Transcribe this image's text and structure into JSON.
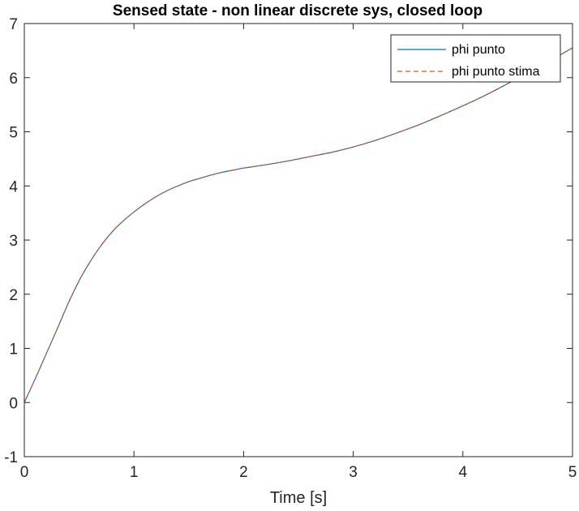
{
  "chart_data": {
    "type": "line",
    "title": "Sensed state - non linear discrete sys, closed loop",
    "xlabel": "Time [s]",
    "ylabel": "",
    "xlim": [
      0,
      5
    ],
    "ylim": [
      -1,
      7
    ],
    "xticks": [
      "0",
      "1",
      "2",
      "3",
      "4",
      "5"
    ],
    "yticks": [
      "-1",
      "0",
      "1",
      "2",
      "3",
      "4",
      "5",
      "6",
      "7"
    ],
    "grid": false,
    "legend_position": "top-right",
    "series": [
      {
        "name": "phi punto",
        "color": "#0072BD",
        "style": "solid",
        "x": [
          0,
          0.1,
          0.2,
          0.3,
          0.4,
          0.5,
          0.6,
          0.7,
          0.8,
          0.9,
          1.0,
          1.1,
          1.2,
          1.3,
          1.4,
          1.5,
          1.6,
          1.7,
          1.8,
          1.9,
          2.0,
          2.2,
          2.4,
          2.6,
          2.8,
          3.0,
          3.2,
          3.4,
          3.6,
          3.8,
          4.0,
          4.2,
          4.4,
          4.6,
          4.8,
          5.0
        ],
        "y": [
          0.0,
          0.44,
          0.9,
          1.36,
          1.83,
          2.25,
          2.6,
          2.9,
          3.15,
          3.35,
          3.52,
          3.67,
          3.8,
          3.91,
          4.0,
          4.08,
          4.14,
          4.2,
          4.25,
          4.29,
          4.33,
          4.39,
          4.46,
          4.54,
          4.62,
          4.72,
          4.84,
          4.98,
          5.13,
          5.3,
          5.48,
          5.67,
          5.88,
          6.1,
          6.32,
          6.55
        ]
      },
      {
        "name": "phi punto stima",
        "color": "#D95319",
        "style": "dashed",
        "x": [
          0,
          0.1,
          0.2,
          0.3,
          0.4,
          0.5,
          0.6,
          0.7,
          0.8,
          0.9,
          1.0,
          1.1,
          1.2,
          1.3,
          1.4,
          1.5,
          1.6,
          1.7,
          1.8,
          1.9,
          2.0,
          2.2,
          2.4,
          2.6,
          2.8,
          3.0,
          3.2,
          3.4,
          3.6,
          3.8,
          4.0,
          4.2,
          4.4,
          4.6,
          4.8,
          5.0
        ],
        "y": [
          0.0,
          0.44,
          0.9,
          1.36,
          1.83,
          2.25,
          2.6,
          2.9,
          3.15,
          3.35,
          3.52,
          3.67,
          3.8,
          3.91,
          4.0,
          4.08,
          4.14,
          4.2,
          4.25,
          4.29,
          4.33,
          4.39,
          4.46,
          4.54,
          4.62,
          4.72,
          4.84,
          4.98,
          5.13,
          5.3,
          5.48,
          5.67,
          5.88,
          6.1,
          6.32,
          6.55
        ]
      }
    ]
  }
}
